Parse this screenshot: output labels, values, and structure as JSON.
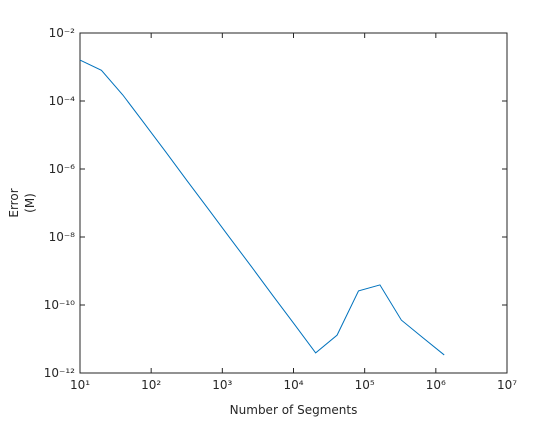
{
  "chart_data": {
    "type": "line",
    "xlabel": "Number of Segments",
    "ylabel": [
      "Error",
      "(M)"
    ],
    "x": [
      10,
      20,
      40,
      80,
      160,
      320,
      640,
      1280,
      2560,
      5120,
      10240,
      20480,
      40960,
      81920,
      163840,
      327680,
      655360,
      1310720
    ],
    "series": [
      {
        "color": "#0072bd",
        "values": [
          0.0016,
          0.0008,
          0.00015,
          2.2e-05,
          3.2e-06,
          4.5e-07,
          6.5e-08,
          9.3e-09,
          1.35e-09,
          1.9e-10,
          2.75e-11,
          3.9e-12,
          1.3e-11,
          2.6e-10,
          3.9e-10,
          3.6e-11,
          1.1e-11,
          3.4e-12
        ]
      }
    ],
    "xscale": "log",
    "yscale": "log",
    "xlim": [
      10,
      10000000
    ],
    "ylim": [
      1e-12,
      0.01
    ],
    "xticks": [
      {
        "value": 10,
        "label": "10¹"
      },
      {
        "value": 100,
        "label": "10²"
      },
      {
        "value": 1000,
        "label": "10³"
      },
      {
        "value": 10000,
        "label": "10⁴"
      },
      {
        "value": 100000,
        "label": "10⁵"
      },
      {
        "value": 1000000,
        "label": "10⁶"
      },
      {
        "value": 10000000,
        "label": "10⁷"
      }
    ],
    "yticks": [
      {
        "value": 1e-12,
        "label": "10⁻¹²"
      },
      {
        "value": 1e-10,
        "label": "10⁻¹⁰"
      },
      {
        "value": 1e-08,
        "label": "10⁻⁸"
      },
      {
        "value": 1e-06,
        "label": "10⁻⁶"
      },
      {
        "value": 0.0001,
        "label": "10⁻⁴"
      },
      {
        "value": 0.01,
        "label": "10⁻²"
      }
    ],
    "grid": false
  }
}
